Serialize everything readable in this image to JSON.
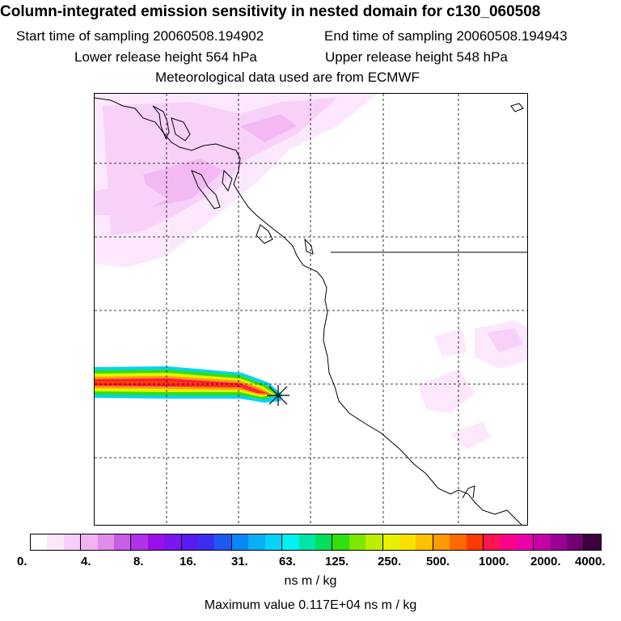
{
  "title": "Column-integrated emission sensitivity in nested domain for c130_060508",
  "start_sampling": "Start time of sampling 20060508.194902",
  "end_sampling": "End time of sampling 20060508.194943",
  "lower_release": "Lower release height  564 hPa",
  "upper_release": "Upper release height  548 hPa",
  "met_data": "Meteorological data used are from ECMWF",
  "colorbar": {
    "ticks": [
      "0.",
      "4.",
      "8.",
      "16.",
      "31.",
      "63.",
      "125.",
      "250.",
      "500.",
      "1000.",
      "2000.",
      "4000."
    ],
    "colors": [
      "#ffffff",
      "#fce6fc",
      "#f8cdf8",
      "#f2b2f2",
      "#e08ce8",
      "#c95ee6",
      "#b033e8",
      "#9a10ea",
      "#7a16ee",
      "#5a1af0",
      "#3a2ef0",
      "#1e5af2",
      "#0c86f6",
      "#08aef8",
      "#06d2fa",
      "#00f2f2",
      "#00e6a6",
      "#00e05c",
      "#30e010",
      "#7ee600",
      "#bcee00",
      "#e6f000",
      "#fae000",
      "#ffc000",
      "#ff9a00",
      "#ff6a00",
      "#ff3a00",
      "#ff1450",
      "#ff008c",
      "#ec00ae",
      "#c600a8",
      "#9a0096",
      "#700070",
      "#3e003e"
    ]
  },
  "units": "ns m / kg",
  "max_value": "Maximum value  0.117E+04 ns m / kg"
}
